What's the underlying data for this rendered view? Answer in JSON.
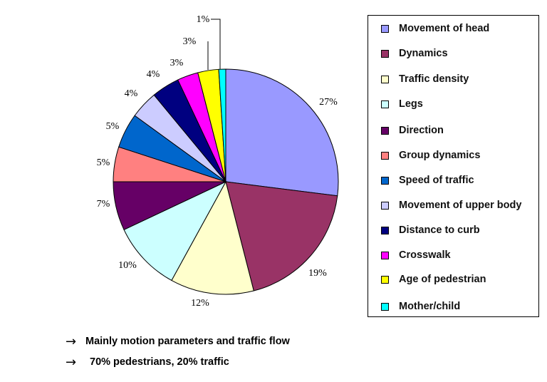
{
  "chart_data": {
    "type": "pie",
    "slices": [
      {
        "name": "Movement of head",
        "value": 27,
        "label": "27%",
        "color": "#9999ff"
      },
      {
        "name": "Dynamics",
        "value": 19,
        "label": "19%",
        "color": "#993366"
      },
      {
        "name": "Traffic density",
        "value": 12,
        "label": "12%",
        "color": "#ffffcc"
      },
      {
        "name": "Legs",
        "value": 10,
        "label": "10%",
        "color": "#ccffff"
      },
      {
        "name": "Direction",
        "value": 7,
        "label": "7%",
        "color": "#660066"
      },
      {
        "name": "Group dynamics",
        "value": 5,
        "label": "5%",
        "color": "#ff8080"
      },
      {
        "name": "Speed of traffic",
        "value": 5,
        "label": "5%",
        "color": "#0066cc"
      },
      {
        "name": "Movement of upper body",
        "value": 4,
        "label": "4%",
        "color": "#ccccff"
      },
      {
        "name": "Distance to curb",
        "value": 4,
        "label": "4%",
        "color": "#000080"
      },
      {
        "name": "Crosswalk",
        "value": 3,
        "label": "3%",
        "color": "#ff00ff"
      },
      {
        "name": "Age of pedestrian",
        "value": 3,
        "label": "3%",
        "color": "#ffff00"
      },
      {
        "name": "Mother/child",
        "value": 1,
        "label": "1%",
        "color": "#00ffff"
      }
    ],
    "legend_position": "right"
  },
  "notes": [
    {
      "arrow": "→",
      "text": "Mainly motion parameters and traffic flow"
    },
    {
      "arrow": "→",
      "text": "70% pedestrians, 20% traffic"
    }
  ]
}
